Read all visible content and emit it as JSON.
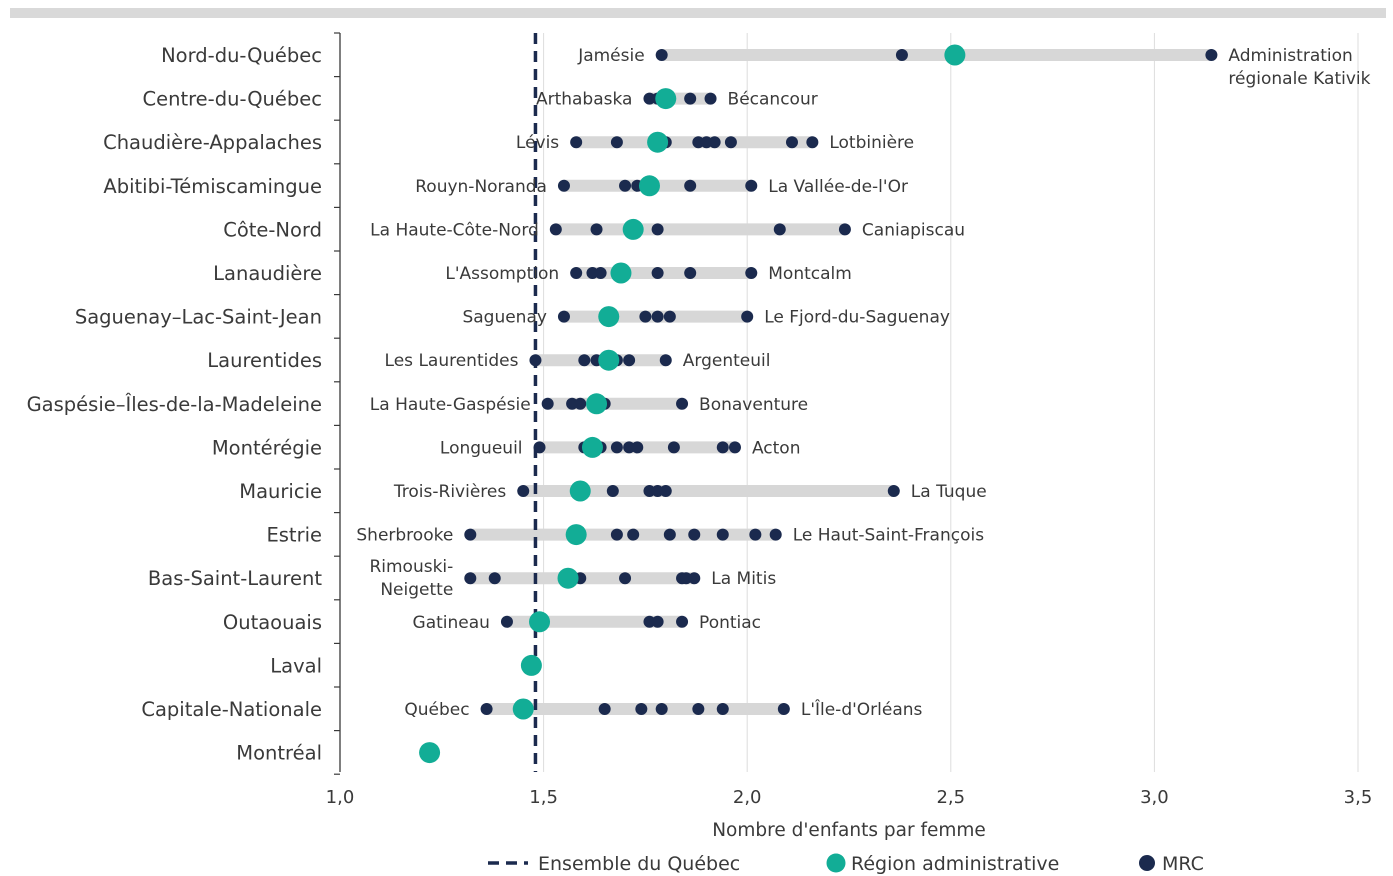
{
  "chart_data": {
    "type": "dot-range",
    "xlabel": "Nombre d'enfants par femme",
    "xlim": [
      1.0,
      3.5
    ],
    "xticks": [
      "1,0",
      "1,5",
      "2,0",
      "2,5",
      "3,0",
      "3,5"
    ],
    "xtick_values": [
      1.0,
      1.5,
      2.0,
      2.5,
      3.0,
      3.5
    ],
    "reference_line": {
      "name": "Ensemble du Québec",
      "value": 1.48
    },
    "legend": [
      {
        "key": "quebec",
        "label": "Ensemble du Québec"
      },
      {
        "key": "region",
        "label": "Région administrative"
      },
      {
        "key": "mrc",
        "label": "MRC"
      }
    ],
    "colors": {
      "region": "#12ad96",
      "mrc": "#1b2a4e",
      "range": "#d7d7d7",
      "reference": "#1b2a4e",
      "grid": "#dddddd"
    },
    "regions": [
      {
        "name": "Nord-du-Québec",
        "region_value": 2.51,
        "mrc_values": [
          1.79,
          2.38,
          3.14
        ],
        "min_label": "Jamésie",
        "max_label": "Administration régionale Kativik"
      },
      {
        "name": "Centre-du-Québec",
        "region_value": 1.8,
        "mrc_values": [
          1.76,
          1.78,
          1.86,
          1.91
        ],
        "min_label": "Arthabaska",
        "max_label": "Bécancour"
      },
      {
        "name": "Chaudière-Appalaches",
        "region_value": 1.78,
        "mrc_values": [
          1.58,
          1.68,
          1.77,
          1.8,
          1.88,
          1.9,
          1.92,
          1.96,
          2.11,
          2.16
        ],
        "min_label": "Lévis",
        "max_label": "Lotbinière"
      },
      {
        "name": "Abitibi-Témiscamingue",
        "region_value": 1.76,
        "mrc_values": [
          1.55,
          1.7,
          1.73,
          1.86,
          2.01
        ],
        "min_label": "Rouyn-Noranda",
        "max_label": "La Vallée-de-l'Or"
      },
      {
        "name": "Côte-Nord",
        "region_value": 1.72,
        "mrc_values": [
          1.53,
          1.63,
          1.71,
          1.78,
          2.08,
          2.24
        ],
        "min_label": "La Haute-Côte-Nord",
        "max_label": "Caniapiscau"
      },
      {
        "name": "Lanaudière",
        "region_value": 1.69,
        "mrc_values": [
          1.58,
          1.62,
          1.64,
          1.78,
          1.86,
          2.01
        ],
        "min_label": "L'Assomption",
        "max_label": "Montcalm"
      },
      {
        "name": "Saguenay–Lac-Saint-Jean",
        "region_value": 1.66,
        "mrc_values": [
          1.55,
          1.75,
          1.78,
          1.81,
          2.0
        ],
        "min_label": "Saguenay",
        "max_label": "Le Fjord-du-Saguenay"
      },
      {
        "name": "Laurentides",
        "region_value": 1.66,
        "mrc_values": [
          1.48,
          1.6,
          1.63,
          1.66,
          1.68,
          1.71,
          1.8
        ],
        "min_label": "Les Laurentides",
        "max_label": "Argenteuil"
      },
      {
        "name": "Gaspésie–Îles-de-la-Madeleine",
        "region_value": 1.63,
        "mrc_values": [
          1.51,
          1.57,
          1.59,
          1.65,
          1.84
        ],
        "min_label": "La Haute-Gaspésie",
        "max_label": "Bonaventure"
      },
      {
        "name": "Montérégie",
        "region_value": 1.62,
        "mrc_values": [
          1.49,
          1.6,
          1.64,
          1.68,
          1.71,
          1.73,
          1.82,
          1.94,
          1.97
        ],
        "min_label": "Longueuil",
        "max_label": "Acton"
      },
      {
        "name": "Mauricie",
        "region_value": 1.59,
        "mrc_values": [
          1.45,
          1.67,
          1.76,
          1.78,
          1.8,
          2.36
        ],
        "min_label": "Trois-Rivières",
        "max_label": "La Tuque"
      },
      {
        "name": "Estrie",
        "region_value": 1.58,
        "mrc_values": [
          1.32,
          1.68,
          1.72,
          1.81,
          1.87,
          1.94,
          2.02,
          2.07
        ],
        "min_label": "Sherbrooke",
        "max_label": "Le Haut-Saint-François"
      },
      {
        "name": "Bas-Saint-Laurent",
        "region_value": 1.56,
        "mrc_values": [
          1.32,
          1.38,
          1.59,
          1.7,
          1.84,
          1.85,
          1.87
        ],
        "min_label": "Rimouski-Neigette",
        "max_label": "La Mitis"
      },
      {
        "name": "Outaouais",
        "region_value": 1.49,
        "mrc_values": [
          1.41,
          1.76,
          1.78,
          1.84
        ],
        "min_label": "Gatineau",
        "max_label": "Pontiac"
      },
      {
        "name": "Laval",
        "region_value": 1.47,
        "mrc_values": [
          1.47
        ],
        "min_label": "",
        "max_label": ""
      },
      {
        "name": "Capitale-Nationale",
        "region_value": 1.45,
        "mrc_values": [
          1.36,
          1.65,
          1.74,
          1.79,
          1.88,
          1.94,
          2.09
        ],
        "min_label": "Québec",
        "max_label": "L'Île-d'Orléans"
      },
      {
        "name": "Montréal",
        "region_value": 1.22,
        "mrc_values": [
          1.22
        ],
        "min_label": "",
        "max_label": ""
      }
    ]
  }
}
